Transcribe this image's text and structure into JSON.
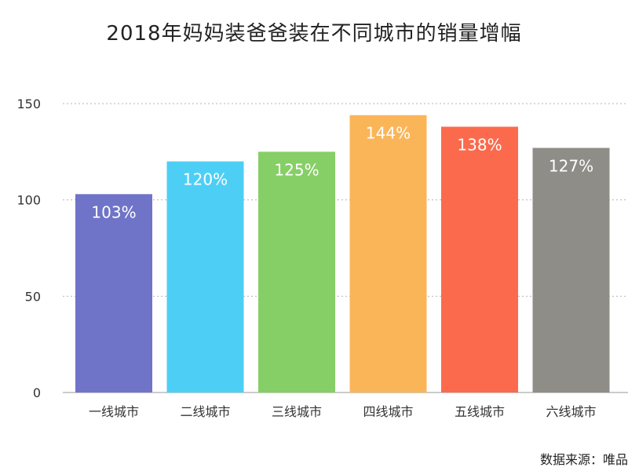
{
  "chart_data": {
    "type": "bar",
    "title": "2018年妈妈装爸爸装在不同城市的销量增幅",
    "categories": [
      "一线城市",
      "二线城市",
      "三线城市",
      "四线城市",
      "五线城市",
      "六线城市"
    ],
    "values": [
      103,
      120,
      125,
      144,
      138,
      127
    ],
    "data_labels": [
      "103%",
      "120%",
      "125%",
      "144%",
      "138%",
      "127%"
    ],
    "colors": [
      "#6f74c8",
      "#4dcff5",
      "#86cf66",
      "#fbb559",
      "#fb6a4c",
      "#8f8d88"
    ],
    "ylim": [
      0,
      150
    ],
    "yticks": [
      0,
      50,
      100,
      150
    ],
    "grid": true,
    "xlabel": "",
    "ylabel": ""
  },
  "source_note": "数据来源：唯品"
}
